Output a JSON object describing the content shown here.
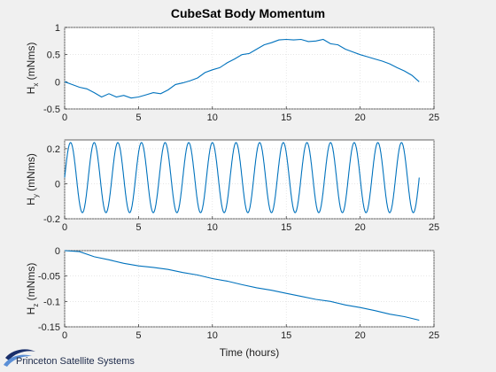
{
  "window": {
    "title": "CubeSat Body Momentum"
  },
  "logo": {
    "text": "Princeton Satellite Systems",
    "colors": {
      "dark": "#1a2f6b",
      "light": "#5b8fd6"
    }
  },
  "chart_data": [
    {
      "type": "line",
      "title": "CubeSat Body Momentum",
      "ylabel": "H",
      "ylabel_subscript": "x",
      "ylabel_unit": "(mNms)",
      "xlabel": "",
      "xlim": [
        0,
        25
      ],
      "ylim": [
        -0.5,
        1
      ],
      "xticks": [
        "0",
        "5",
        "10",
        "15",
        "20",
        "25"
      ],
      "yticks": [
        "-0.5",
        "0",
        "0.5",
        "1"
      ],
      "ytick_values": [
        -0.5,
        0,
        0.5,
        1
      ],
      "grid": true,
      "color": "#0072bd",
      "series": [
        {
          "x": [
            0,
            0.5,
            1,
            1.5,
            2,
            2.5,
            3,
            3.5,
            4,
            4.5,
            5,
            5.5,
            6,
            6.5,
            7,
            7.5,
            8,
            8.5,
            9,
            9.5,
            10,
            10.5,
            11,
            11.5,
            12,
            12.5,
            13,
            13.5,
            14,
            14.5,
            15,
            15.5,
            16,
            16.5,
            17,
            17.5,
            18,
            18.5,
            19,
            19.5,
            20,
            20.5,
            21,
            21.5,
            22,
            22.5,
            23,
            23.5,
            24
          ],
          "y": [
            0,
            -0.05,
            -0.1,
            -0.13,
            -0.2,
            -0.28,
            -0.22,
            -0.28,
            -0.25,
            -0.3,
            -0.28,
            -0.24,
            -0.2,
            -0.22,
            -0.15,
            -0.05,
            -0.02,
            0.02,
            0.07,
            0.17,
            0.22,
            0.26,
            0.35,
            0.42,
            0.5,
            0.52,
            0.6,
            0.68,
            0.72,
            0.77,
            0.78,
            0.77,
            0.78,
            0.74,
            0.75,
            0.78,
            0.7,
            0.68,
            0.6,
            0.55,
            0.5,
            0.46,
            0.42,
            0.38,
            0.33,
            0.26,
            0.2,
            0.12,
            0
          ]
        }
      ]
    },
    {
      "type": "line",
      "title": "",
      "ylabel": "H",
      "ylabel_subscript": "y",
      "ylabel_unit": "(mNms)",
      "xlabel": "",
      "xlim": [
        0,
        25
      ],
      "ylim": [
        -0.2,
        0.25
      ],
      "xticks": [
        "0",
        "5",
        "10",
        "15",
        "20",
        "25"
      ],
      "yticks": [
        "-0.2",
        "0",
        "0.2"
      ],
      "ytick_values": [
        -0.2,
        0,
        0.2
      ],
      "grid": true,
      "color": "#0072bd",
      "series": [
        {
          "function": "sinusoid",
          "offset": 0.035,
          "amplitude": 0.2,
          "period_hours": 1.6,
          "x_range": [
            0,
            24
          ]
        }
      ]
    },
    {
      "type": "line",
      "title": "",
      "ylabel": "H",
      "ylabel_subscript": "z",
      "ylabel_unit": "(mNms)",
      "xlabel": "Time (hours)",
      "xlim": [
        0,
        25
      ],
      "ylim": [
        -0.15,
        0
      ],
      "xticks": [
        "0",
        "5",
        "10",
        "15",
        "20",
        "25"
      ],
      "yticks": [
        "-0.15",
        "-0.1",
        "-0.05",
        "0"
      ],
      "ytick_values": [
        -0.15,
        -0.1,
        -0.05,
        0
      ],
      "grid": true,
      "color": "#0072bd",
      "series": [
        {
          "x": [
            0,
            1,
            2,
            3,
            4,
            5,
            6,
            7,
            8,
            9,
            10,
            11,
            12,
            13,
            14,
            15,
            16,
            17,
            18,
            19,
            20,
            21,
            22,
            23,
            24
          ],
          "y": [
            0,
            -0.002,
            -0.012,
            -0.018,
            -0.025,
            -0.03,
            -0.033,
            -0.037,
            -0.043,
            -0.048,
            -0.055,
            -0.06,
            -0.067,
            -0.073,
            -0.078,
            -0.084,
            -0.09,
            -0.096,
            -0.1,
            -0.107,
            -0.112,
            -0.118,
            -0.125,
            -0.13,
            -0.137
          ]
        }
      ]
    }
  ]
}
